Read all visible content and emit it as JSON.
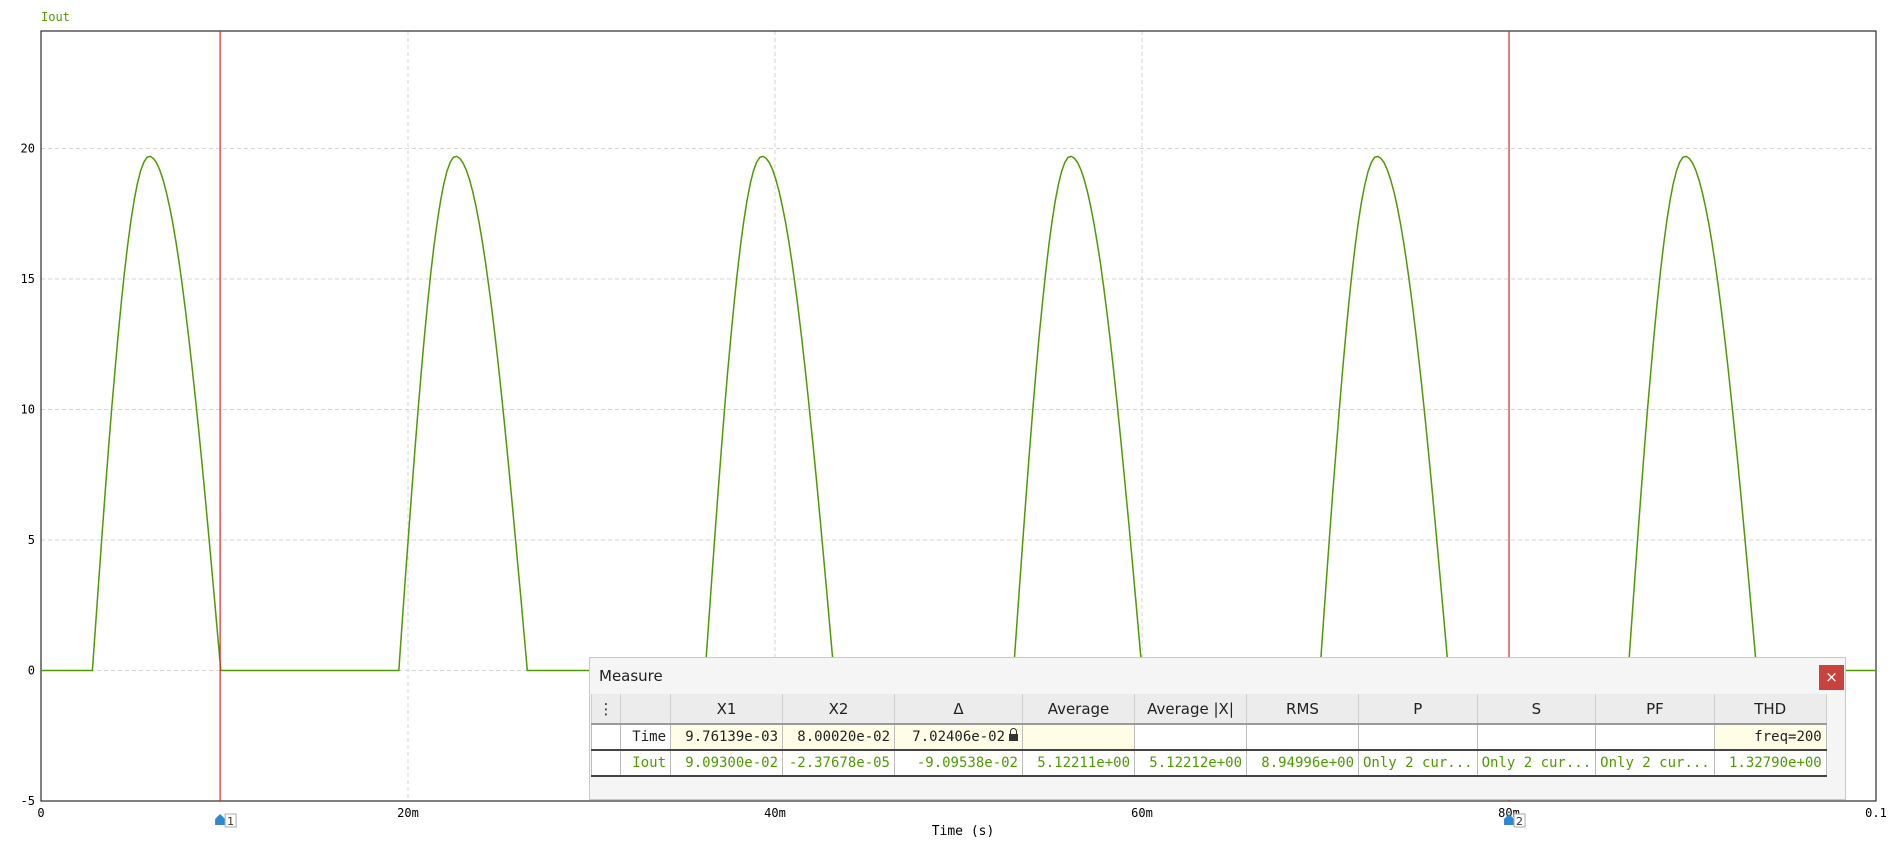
{
  "colors": {
    "trace": "#4f9a00",
    "cursor": "#d42a2a",
    "grid": "#d6d6d6",
    "axis": "#000000",
    "text": "#222222",
    "cursor_marker": "#2f88d0"
  },
  "chart_data": {
    "type": "line",
    "trace_label": "Iout",
    "xlabel": "Time (s)",
    "xlim": [
      0,
      0.1
    ],
    "ylim": [
      -5,
      24.5
    ],
    "x_ticks": [
      {
        "value": 0,
        "label": "0"
      },
      {
        "value": 0.02,
        "label": "20m"
      },
      {
        "value": 0.04,
        "label": "40m"
      },
      {
        "value": 0.06,
        "label": "60m"
      },
      {
        "value": 0.08,
        "label": "80m"
      },
      {
        "value": 0.1,
        "label": "0.1"
      }
    ],
    "y_ticks": [
      {
        "value": -5,
        "label": "-5"
      },
      {
        "value": 0,
        "label": "0"
      },
      {
        "value": 5,
        "label": "5"
      },
      {
        "value": 10,
        "label": "10"
      },
      {
        "value": 15,
        "label": "15"
      },
      {
        "value": 20,
        "label": "20"
      }
    ],
    "grid": true,
    "series": [
      {
        "name": "Iout",
        "pulses": [
          {
            "start": 0.0028,
            "peak_time": 0.0059,
            "end": 0.0098,
            "peak": 19.7
          },
          {
            "start": 0.0195,
            "peak_time": 0.0226,
            "end": 0.0265,
            "peak": 19.7
          },
          {
            "start": 0.0362,
            "peak_time": 0.0393,
            "end": 0.0432,
            "peak": 19.7
          },
          {
            "start": 0.053,
            "peak_time": 0.0561,
            "end": 0.06,
            "peak": 19.7
          },
          {
            "start": 0.0697,
            "peak_time": 0.0728,
            "end": 0.0767,
            "peak": 19.7
          },
          {
            "start": 0.0865,
            "peak_time": 0.0896,
            "end": 0.0935,
            "peak": 19.7
          }
        ],
        "baseline": 0
      }
    ],
    "cursors": [
      {
        "label": "1",
        "x": 0.00976139
      },
      {
        "label": "2",
        "x": 0.080002
      }
    ]
  },
  "measure": {
    "title": "Measure",
    "close_label": "×",
    "menu_label": "⋮",
    "columns": [
      "X1",
      "X2",
      "Δ",
      "Average",
      "Average |X|",
      "RMS",
      "P",
      "S",
      "PF",
      "THD"
    ],
    "rows": [
      {
        "name": "Time",
        "values": [
          "9.76139e-03",
          "8.00020e-02",
          "7.02406e-02",
          "",
          "",
          "",
          "",
          "",
          "",
          "freq=200"
        ]
      },
      {
        "name": "Iout",
        "values": [
          "9.09300e-02",
          "-2.37678e-05",
          "-9.09538e-02",
          "5.12211e+00",
          "5.12212e+00",
          "8.94996e+00",
          "Only 2 cur...",
          "Only 2 cur...",
          "Only 2 cur...",
          "1.32790e+00"
        ]
      }
    ]
  }
}
